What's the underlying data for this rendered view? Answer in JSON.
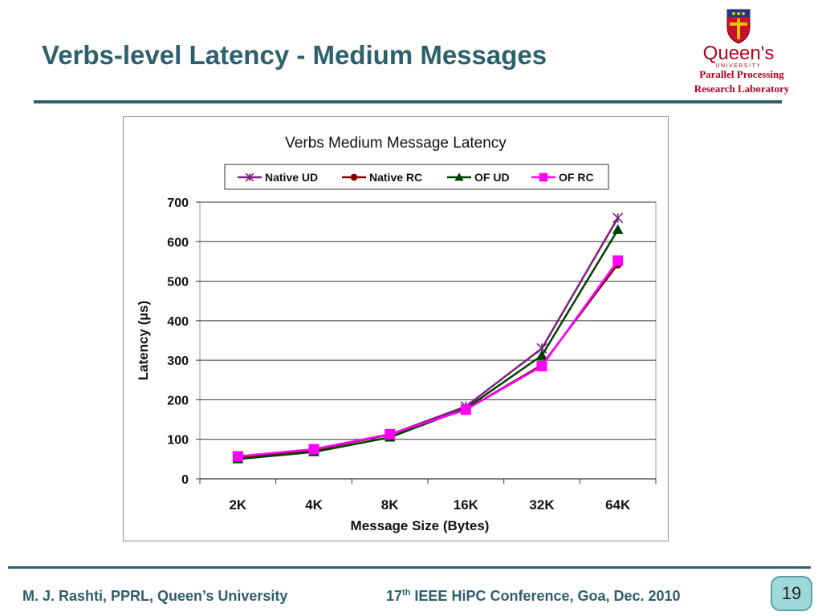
{
  "slide": {
    "title": "Verbs-level Latency - Medium Messages",
    "lab_line1": "Parallel Processing",
    "lab_line2": "Research Laboratory",
    "logo_text": "Queen's",
    "logo_subtext": "UNIVERSITY",
    "footer_left": "M. J. Rashti, PPRL, Queen’s University",
    "footer_num": "17",
    "footer_sup": "th",
    "footer_rest": " IEEE HiPC Conference, Goa, Dec. 2010",
    "page_number": "19",
    "accent_color": "#2e5f6c",
    "logo_text_color": "#b3001b"
  },
  "chart_data": {
    "type": "line",
    "title": "Verbs Medium Message Latency",
    "xlabel": "Message Size (Bytes)",
    "ylabel": "Latency (µs)",
    "categories": [
      "2K",
      "4K",
      "8K",
      "16K",
      "32K",
      "64K"
    ],
    "ylim": [
      0,
      700
    ],
    "yticks": [
      0,
      100,
      200,
      300,
      400,
      500,
      600,
      700
    ],
    "grid": true,
    "legend_position": "top",
    "series": [
      {
        "name": "Native UD",
        "color": "#7b1f7b",
        "marker": "star",
        "values": [
          55,
          73,
          112,
          183,
          330,
          660
        ]
      },
      {
        "name": "Native RC",
        "color": "#800000",
        "marker": "circle",
        "values": [
          55,
          73,
          112,
          175,
          288,
          543
        ]
      },
      {
        "name": "OF UD",
        "color": "#004000",
        "marker": "triangle",
        "values": [
          50,
          68,
          105,
          178,
          312,
          630
        ]
      },
      {
        "name": "OF RC",
        "color": "#ff00ff",
        "marker": "square",
        "values": [
          57,
          75,
          113,
          175,
          285,
          552
        ]
      }
    ]
  }
}
